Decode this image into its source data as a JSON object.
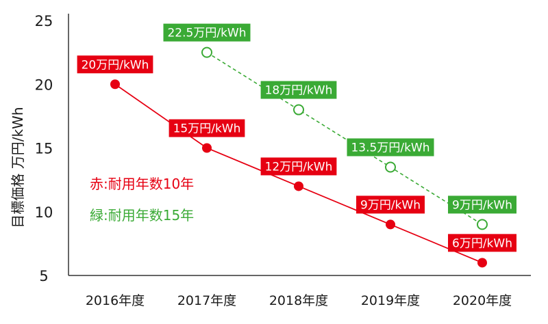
{
  "chart_data": {
    "type": "line",
    "title": "",
    "xlabel": "",
    "ylabel": "目標価格 万円/kWh",
    "ylim": [
      5,
      25
    ],
    "yticks": [
      5,
      10,
      15,
      20,
      25
    ],
    "categories": [
      "2016年度",
      "2017年度",
      "2018年度",
      "2019年度",
      "2020年度"
    ],
    "grid": false,
    "series": [
      {
        "name": "赤:耐用年数10年",
        "color": "#e60012",
        "style": "solid",
        "marker": "filled-circle",
        "x": [
          "2016年度",
          "2017年度",
          "2018年度",
          "2019年度",
          "2020年度"
        ],
        "values": [
          20,
          15,
          12,
          9,
          6
        ],
        "labels": [
          "20万円/kWh",
          "15万円/kWh",
          "12万円/kWh",
          "9万円/kWh",
          "6万円/kWh"
        ]
      },
      {
        "name": "緑:耐用年数15年",
        "color": "#3aaa35",
        "style": "dashed",
        "marker": "open-circle",
        "x": [
          "2017年度",
          "2018年度",
          "2019年度",
          "2020年度"
        ],
        "values": [
          22.5,
          18,
          13.5,
          9
        ],
        "labels": [
          "22.5万円/kWh",
          "18万円/kWh",
          "13.5万円/kWh",
          "9万円/kWh"
        ]
      }
    ],
    "legend": {
      "placement": "left-middle",
      "entries": [
        "赤:耐用年数10年",
        "緑:耐用年数15年"
      ]
    }
  }
}
